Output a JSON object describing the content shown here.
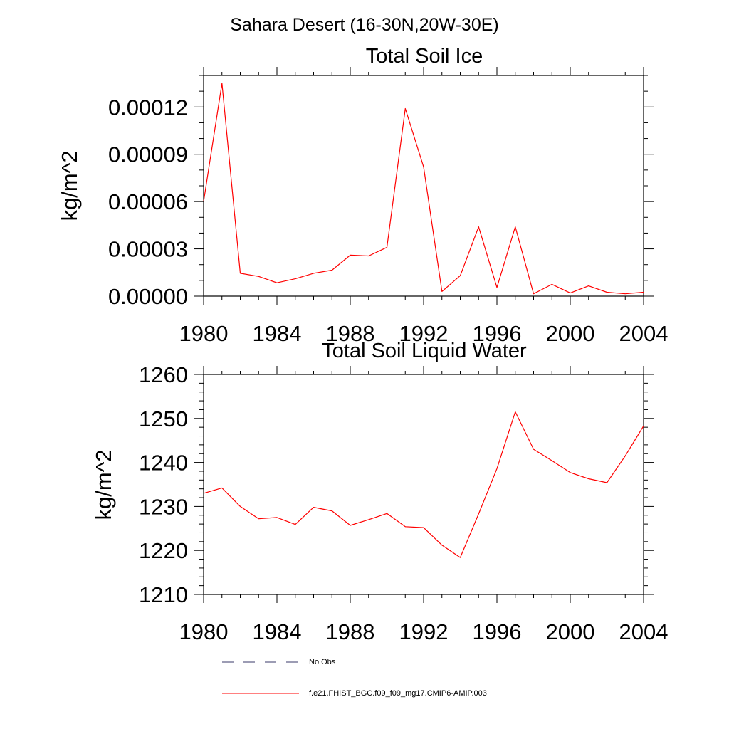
{
  "title": "Sahara Desert (16-30N,20W-30E)",
  "chart_data": [
    {
      "type": "line",
      "title": "Total Soil Ice",
      "ylabel": "kg/m^2",
      "xlim": [
        1980,
        2004
      ],
      "ylim": [
        0,
        0.00014
      ],
      "xticks": [
        1980,
        1984,
        1988,
        1992,
        1996,
        2000,
        2004
      ],
      "xtick_labels": [
        "1980",
        "1984",
        "1988",
        "1992",
        "1996",
        "2000",
        "2004"
      ],
      "yticks": [
        0,
        3e-05,
        6e-05,
        9e-05,
        0.00012
      ],
      "ytick_labels": [
        "0.00000",
        "0.00003",
        "0.00006",
        "0.00009",
        "0.00012"
      ],
      "yminor_step": 1e-05,
      "x": [
        1980,
        1981,
        1982,
        1983,
        1984,
        1985,
        1986,
        1987,
        1988,
        1989,
        1990,
        1991,
        1992,
        1993,
        1994,
        1995,
        1996,
        1997,
        1998,
        1999,
        2000,
        2001,
        2002,
        2003,
        2004
      ],
      "series": [
        {
          "name": "f.e21.FHIST_BGC.f09_f09_mg17.CMIP6-AMIP.003",
          "color": "#ff0000",
          "values": [
            6e-05,
            0.000135,
            1.45e-05,
            1.25e-05,
            8.5e-06,
            1.1e-05,
            1.45e-05,
            1.65e-05,
            2.6e-05,
            2.55e-05,
            3.1e-05,
            0.000119,
            8.2e-05,
            3e-06,
            1.3e-05,
            4.4e-05,
            5.5e-06,
            4.4e-05,
            1.5e-06,
            7.5e-06,
            2e-06,
            6.5e-06,
            2.5e-06,
            1.5e-06,
            2.5e-06
          ]
        }
      ]
    },
    {
      "type": "line",
      "title": "Total Soil Liquid Water",
      "ylabel": "kg/m^2",
      "xlim": [
        1980,
        2004
      ],
      "ylim": [
        1210,
        1260
      ],
      "xticks": [
        1980,
        1984,
        1988,
        1992,
        1996,
        2000,
        2004
      ],
      "xtick_labels": [
        "1980",
        "1984",
        "1988",
        "1992",
        "1996",
        "2000",
        "2004"
      ],
      "yticks": [
        1210,
        1220,
        1230,
        1240,
        1250,
        1260
      ],
      "ytick_labels": [
        "1210",
        "1220",
        "1230",
        "1240",
        "1250",
        "1260"
      ],
      "yminor_step": 2,
      "x": [
        1980,
        1981,
        1982,
        1983,
        1984,
        1985,
        1986,
        1987,
        1988,
        1989,
        1990,
        1991,
        1992,
        1993,
        1994,
        1995,
        1996,
        1997,
        1998,
        1999,
        2000,
        2001,
        2002,
        2003,
        2004
      ],
      "series": [
        {
          "name": "f.e21.FHIST_BGC.f09_f09_mg17.CMIP6-AMIP.003",
          "color": "#ff0000",
          "values": [
            1233.0,
            1234.2,
            1230.0,
            1227.2,
            1227.5,
            1225.9,
            1229.8,
            1229.0,
            1225.7,
            1227.0,
            1228.4,
            1225.4,
            1225.2,
            1221.2,
            1218.4,
            1228.3,
            1238.6,
            1251.5,
            1243.0,
            1240.4,
            1237.7,
            1236.3,
            1235.4,
            1241.5,
            1248.3
          ]
        }
      ]
    }
  ],
  "legend": [
    {
      "label": "No Obs",
      "style": "dashed",
      "color": "#3a3a6a"
    },
    {
      "label": "f.e21.FHIST_BGC.f09_f09_mg17.CMIP6-AMIP.003",
      "style": "solid",
      "color": "#ff0000"
    }
  ]
}
